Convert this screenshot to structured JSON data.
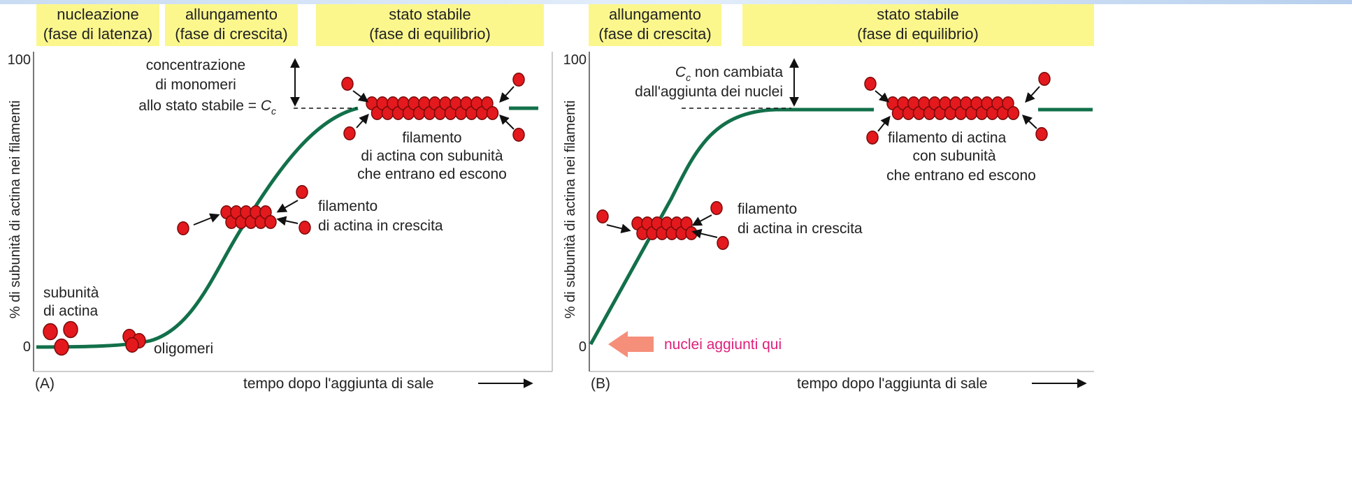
{
  "panels": [
    {
      "label": "(A)",
      "phases": [
        {
          "name": "nucleazione",
          "phase": "(fase di latenza)"
        },
        {
          "name": "allungamento",
          "phase": "(fase di crescita)"
        },
        {
          "name": "stato stabile",
          "phase": "(fase di equilibrio)"
        }
      ],
      "y_axis": {
        "title": "% di subunità di actina nei filamenti",
        "max": "100",
        "min": "0"
      },
      "x_axis": "tempo dopo l'aggiunta di sale",
      "cc_note": {
        "lines": [
          "concentrazione",
          "di monomeri"
        ],
        "prefix": "allo stato stabile = ",
        "symbol": "C",
        "subscript": "c"
      },
      "steady_filament": [
        "filamento",
        "di actina con subunità",
        "che entrano ed escono"
      ],
      "growing_filament": [
        "filamento",
        "di actina in crescita"
      ],
      "subunits": [
        "subunità",
        "di actina"
      ],
      "oligomers": "oligomeri"
    },
    {
      "label": "(B)",
      "phases": [
        {
          "name": "allungamento",
          "phase": "(fase di crescita)"
        },
        {
          "name": "stato stabile",
          "phase": "(fase di equilibrio)"
        }
      ],
      "y_axis": {
        "title": "% di subunità di actina nei filamenti",
        "max": "100",
        "min": "0"
      },
      "x_axis": "tempo dopo l'aggiunta di sale",
      "cc_note": {
        "symbol": "C",
        "subscript": "c",
        "suffix": " non cambiata",
        "lines": [
          "dall'aggiunta dei nuclei"
        ]
      },
      "steady_filament": [
        "filamento di actina",
        "con subunità",
        "che entrano ed escono"
      ],
      "growing_filament": [
        "filamento",
        "di actina in crescita"
      ],
      "nuclei_note": "nuclei aggiunti qui"
    }
  ]
}
